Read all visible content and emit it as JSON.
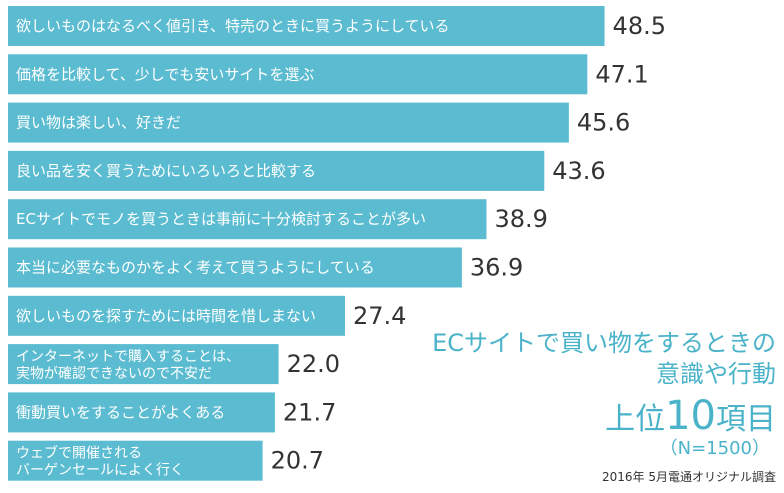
{
  "chart_data": {
    "type": "bar",
    "orientation": "horizontal",
    "categories": [
      "欲しいものはなるべく値引き、特売のときに買うようにしている",
      "価格を比較して、少しでも安いサイトを選ぶ",
      "買い物は楽しい、好きだ",
      "良い品を安く買うためにいろいろと比較する",
      "ECサイトでモノを買うときは事前に十分検討することが多い",
      "本当に必要なものかをよく考えて買うようにしている",
      "欲しいものを探すためには時間を惜しまない",
      "インターネットで購入することは、\n実物が確認できないので不安だ",
      "衝動買いをすることがよくある",
      "ウェブで開催される\nバーゲンセールによく行く"
    ],
    "values": [
      48.5,
      47.1,
      45.6,
      43.6,
      38.9,
      36.9,
      27.4,
      22.0,
      21.7,
      20.7
    ],
    "value_labels": [
      "48.5",
      "47.1",
      "45.6",
      "43.6",
      "38.9",
      "36.9",
      "27.4",
      "22.0",
      "21.7",
      "20.7"
    ],
    "bar_color": "#5bbcd1",
    "label_color": "#ffffff",
    "value_color": "#333333",
    "title": "ECサイトで買い物をするときの意識や行動",
    "grid": false,
    "legend": "none"
  },
  "title": {
    "line1": "ECサイトで買い物をするときの",
    "line2": "意識や行動",
    "rank_prefix": "上位",
    "rank_number": "10",
    "rank_suffix": "項目",
    "sample": "（N=1500）"
  },
  "source": "2016年 5月電通オリジナル調査"
}
